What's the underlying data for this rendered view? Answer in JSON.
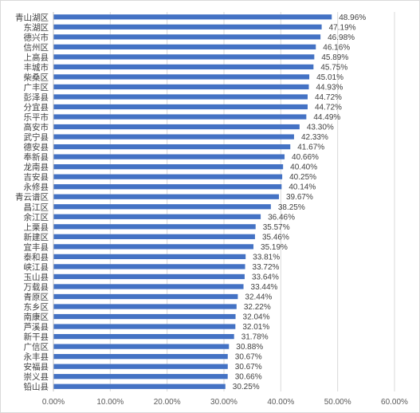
{
  "chart_data": {
    "type": "bar",
    "orientation": "horizontal",
    "categories": [
      "青山湖区",
      "东湖区",
      "德兴市",
      "信州区",
      "上高县",
      "丰城市",
      "柴桑区",
      "广丰区",
      "彭泽县",
      "分宜县",
      "乐平市",
      "高安市",
      "武宁县",
      "德安县",
      "奉新县",
      "龙南县",
      "吉安县",
      "永修县",
      "青云谱区",
      "昌江区",
      "余江区",
      "上栗县",
      "新建区",
      "宜丰县",
      "泰和县",
      "峡江县",
      "玉山县",
      "万载县",
      "青原区",
      "东乡区",
      "南康区",
      "芦溪县",
      "新干县",
      "广信区",
      "永丰县",
      "安福县",
      "崇义县",
      "铅山县"
    ],
    "values": [
      48.96,
      47.19,
      46.98,
      46.16,
      45.89,
      45.75,
      45.01,
      44.93,
      44.72,
      44.72,
      44.49,
      43.3,
      42.33,
      41.67,
      40.66,
      40.4,
      40.25,
      40.14,
      39.67,
      38.25,
      36.46,
      35.57,
      35.46,
      35.19,
      33.81,
      33.72,
      33.64,
      33.44,
      32.44,
      32.22,
      32.04,
      32.01,
      31.78,
      30.88,
      30.67,
      30.67,
      30.66,
      30.25
    ],
    "value_labels": [
      "48.96%",
      "47.19%",
      "46.98%",
      "46.16%",
      "45.89%",
      "45.75%",
      "45.01%",
      "44.93%",
      "44.72%",
      "44.72%",
      "44.49%",
      "43.30%",
      "42.33%",
      "41.67%",
      "40.66%",
      "40.40%",
      "40.25%",
      "40.14%",
      "39.67%",
      "38.25%",
      "36.46%",
      "35.57%",
      "35.46%",
      "35.19%",
      "33.81%",
      "33.72%",
      "33.64%",
      "33.44%",
      "32.44%",
      "32.22%",
      "32.04%",
      "32.01%",
      "31.78%",
      "30.88%",
      "30.67%",
      "30.67%",
      "30.66%",
      "30.25%"
    ],
    "x_ticks": [
      "0.00%",
      "10.00%",
      "20.00%",
      "30.00%",
      "40.00%",
      "50.00%",
      "60.00%"
    ],
    "xlim": [
      0,
      60
    ],
    "grid": true,
    "bar_color": "#4472c4",
    "title": "",
    "xlabel": "",
    "ylabel": ""
  }
}
